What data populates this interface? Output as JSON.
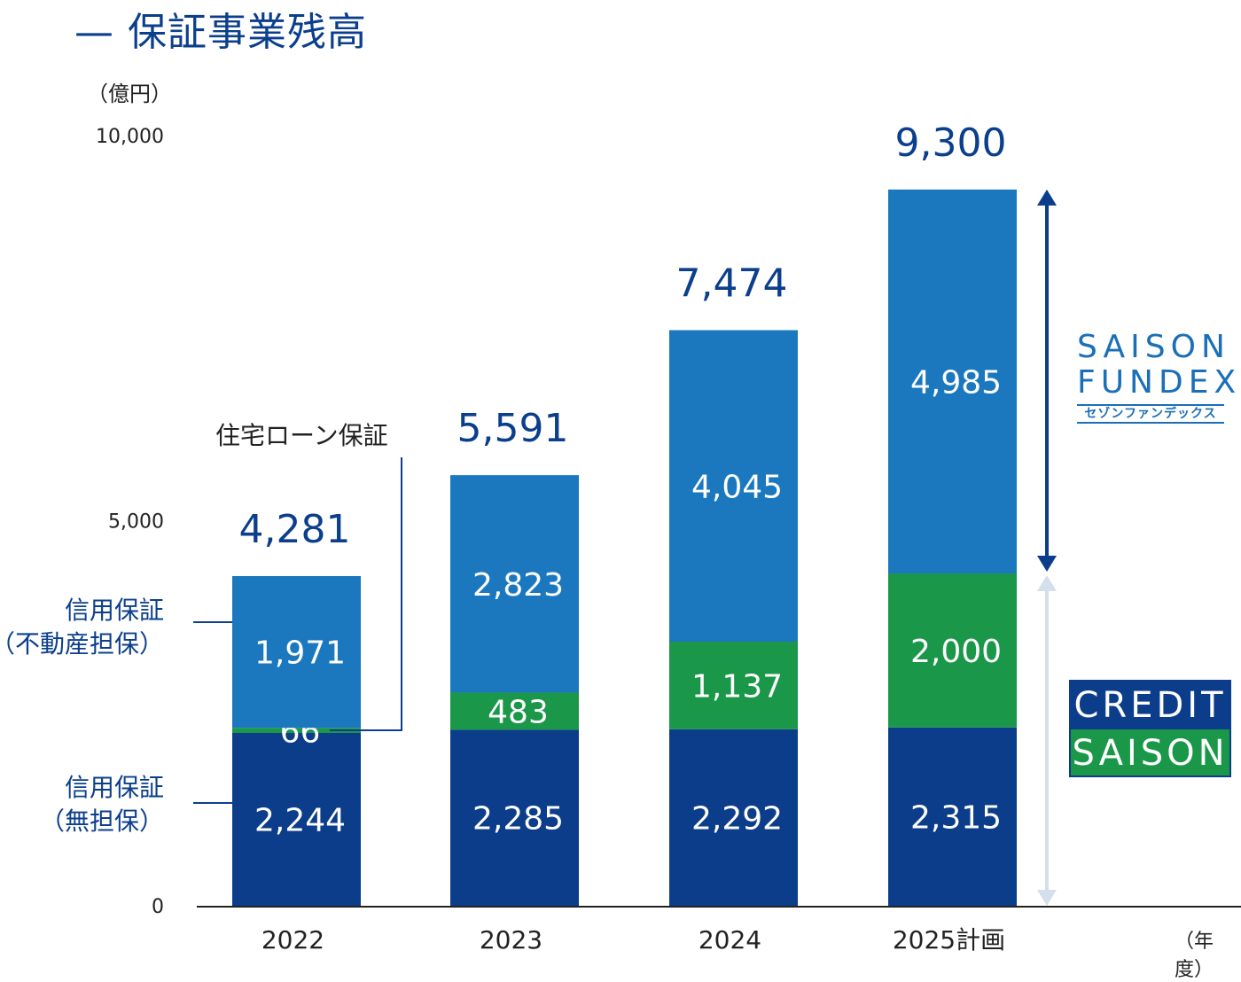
{
  "title": "— 保証事業残高",
  "unit": "（億円）",
  "fiscal_year_unit": "（年度）",
  "side_labels": {
    "credit_real_estate_line1": "信用保証",
    "credit_real_estate_line2": "（不動産担保）",
    "credit_unsecured_line1": "信用保証",
    "credit_unsecured_line2": "（無担保）",
    "housing_loan": "住宅ローン保証"
  },
  "logos": {
    "saison_fundex_line1": "SAISON",
    "saison_fundex_line2": "FUNDEX",
    "saison_fundex_kana": "セゾンファンデックス",
    "credit_saison_line1": "CREDIT",
    "credit_saison_line2": "SAISON"
  },
  "colors": {
    "unsecured": "#0c3d8a",
    "housing": "#1a9748",
    "real_estate": "#1b78bf",
    "text_blue": "#0b3f8c",
    "arrow_up": "#0c3d8a",
    "arrow_down": "#d4dfec"
  },
  "chart_data": {
    "type": "bar",
    "stacked": true,
    "categories": [
      "2022",
      "2023",
      "2024",
      "2025計画"
    ],
    "series": [
      {
        "name": "信用保証（無担保）",
        "values": [
          2244,
          2285,
          2292,
          2315
        ],
        "labels": [
          "2,244",
          "2,285",
          "2,292",
          "2,315"
        ]
      },
      {
        "name": "住宅ローン保証",
        "values": [
          66,
          483,
          1137,
          2000
        ],
        "labels": [
          "66",
          "483",
          "1,137",
          "2,000"
        ]
      },
      {
        "name": "信用保証（不動産担保）",
        "values": [
          1971,
          2823,
          4045,
          4985
        ],
        "labels": [
          "1,971",
          "2,823",
          "4,045",
          "4,985"
        ]
      }
    ],
    "totals": [
      4281,
      5591,
      7474,
      9300
    ],
    "total_labels": [
      "4,281",
      "5,591",
      "7,474",
      "9,300"
    ],
    "yticks": [
      0,
      5000,
      10000
    ],
    "ytick_labels": [
      "0",
      "5,000",
      "10,000"
    ],
    "ylim": [
      0,
      10000
    ],
    "ylabel": "（億円）",
    "xlabel": "（年度）"
  }
}
